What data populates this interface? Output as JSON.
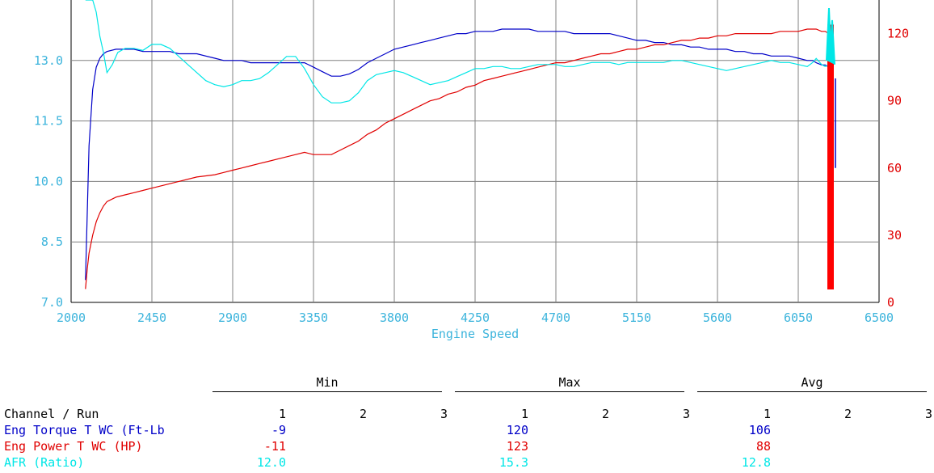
{
  "chart_data": {
    "type": "line",
    "xlabel": "Engine Speed",
    "xlim": [
      2000,
      6500
    ],
    "x_ticks": [
      "2000",
      "2450",
      "2900",
      "3350",
      "3800",
      "4250",
      "4700",
      "5150",
      "5600",
      "6050",
      "6500"
    ],
    "ylim_left": [
      7.0,
      14.5
    ],
    "y_ticks_left": [
      "7.0",
      "8.5",
      "10.0",
      "11.5",
      "13.0"
    ],
    "ylim_right": [
      0,
      135
    ],
    "y_ticks_right": [
      "0",
      "30",
      "60",
      "90",
      "120"
    ],
    "grid": true,
    "series": [
      {
        "axis": "right",
        "color": "#0000c8",
        "x": [
          2080,
          2090,
          2100,
          2120,
          2140,
          2160,
          2180,
          2200,
          2250,
          2300,
          2350,
          2400,
          2450,
          2500,
          2550,
          2600,
          2700,
          2800,
          2850,
          2900,
          2950,
          3000,
          3050,
          3100,
          3150,
          3200,
          3250,
          3300,
          3350,
          3400,
          3450,
          3500,
          3550,
          3600,
          3650,
          3700,
          3750,
          3800,
          3850,
          3900,
          3950,
          4000,
          4050,
          4100,
          4150,
          4200,
          4250,
          4300,
          4350,
          4400,
          4450,
          4500,
          4550,
          4600,
          4650,
          4700,
          4750,
          4800,
          4850,
          4900,
          4950,
          5000,
          5050,
          5100,
          5150,
          5200,
          5250,
          5300,
          5350,
          5400,
          5450,
          5500,
          5550,
          5600,
          5650,
          5700,
          5750,
          5800,
          5850,
          5900,
          5950,
          6000,
          6050,
          6100,
          6130,
          6150,
          6180,
          6200,
          6220,
          6240
        ],
        "y": [
          10,
          40,
          70,
          95,
          105,
          109,
          111,
          112,
          113,
          113,
          113,
          112,
          112,
          112,
          112,
          111,
          111,
          109,
          108,
          108,
          108,
          107,
          107,
          107,
          107,
          107,
          107,
          107,
          105,
          103,
          101,
          101,
          102,
          104,
          107,
          109,
          111,
          113,
          114,
          115,
          116,
          117,
          118,
          119,
          120,
          120,
          121,
          121,
          121,
          122,
          122,
          122,
          122,
          121,
          121,
          121,
          121,
          120,
          120,
          120,
          120,
          120,
          119,
          118,
          117,
          117,
          116,
          116,
          115,
          115,
          114,
          114,
          113,
          113,
          113,
          112,
          112,
          111,
          111,
          110,
          110,
          110,
          109,
          108,
          108,
          107,
          106,
          106,
          105,
          104
        ]
      },
      {
        "axis": "right",
        "color": "#e00000",
        "x": [
          2080,
          2090,
          2100,
          2120,
          2140,
          2160,
          2180,
          2200,
          2250,
          2300,
          2350,
          2400,
          2450,
          2500,
          2550,
          2600,
          2700,
          2800,
          2850,
          2900,
          2950,
          3000,
          3050,
          3100,
          3150,
          3200,
          3250,
          3300,
          3350,
          3400,
          3450,
          3500,
          3550,
          3600,
          3650,
          3700,
          3750,
          3800,
          3850,
          3900,
          3950,
          4000,
          4050,
          4100,
          4150,
          4200,
          4250,
          4300,
          4350,
          4400,
          4450,
          4500,
          4550,
          4600,
          4650,
          4700,
          4750,
          4800,
          4850,
          4900,
          4950,
          5000,
          5050,
          5100,
          5150,
          5200,
          5250,
          5300,
          5350,
          5400,
          5450,
          5500,
          5550,
          5600,
          5650,
          5700,
          5750,
          5800,
          5850,
          5900,
          5950,
          6000,
          6050,
          6100,
          6130,
          6150,
          6180,
          6200,
          6220,
          6240
        ],
        "y": [
          6,
          15,
          22,
          30,
          36,
          40,
          43,
          45,
          47,
          48,
          49,
          50,
          51,
          52,
          53,
          54,
          56,
          57,
          58,
          59,
          60,
          61,
          62,
          63,
          64,
          65,
          66,
          67,
          66,
          66,
          66,
          68,
          70,
          72,
          75,
          77,
          80,
          82,
          84,
          86,
          88,
          90,
          91,
          93,
          94,
          96,
          97,
          99,
          100,
          101,
          102,
          103,
          104,
          105,
          106,
          107,
          107,
          108,
          109,
          110,
          111,
          111,
          112,
          113,
          113,
          114,
          115,
          115,
          116,
          117,
          117,
          118,
          118,
          119,
          119,
          120,
          120,
          120,
          120,
          120,
          121,
          121,
          121,
          122,
          122,
          122,
          121,
          121,
          120,
          121
        ]
      },
      {
        "axis": "left",
        "color": "#00e6e6",
        "x": [
          2080,
          2090,
          2100,
          2120,
          2140,
          2160,
          2180,
          2200,
          2230,
          2260,
          2300,
          2350,
          2400,
          2450,
          2500,
          2550,
          2600,
          2650,
          2700,
          2750,
          2800,
          2850,
          2900,
          2950,
          3000,
          3050,
          3100,
          3150,
          3200,
          3250,
          3300,
          3350,
          3400,
          3450,
          3500,
          3550,
          3600,
          3650,
          3700,
          3750,
          3800,
          3850,
          3900,
          3950,
          4000,
          4050,
          4100,
          4150,
          4200,
          4250,
          4300,
          4350,
          4400,
          4450,
          4500,
          4550,
          4600,
          4650,
          4700,
          4750,
          4800,
          4850,
          4900,
          4950,
          5000,
          5050,
          5100,
          5150,
          5200,
          5250,
          5300,
          5350,
          5400,
          5450,
          5500,
          5550,
          5600,
          5650,
          5700,
          5750,
          5800,
          5850,
          5900,
          5950,
          6000,
          6050,
          6100,
          6130,
          6150,
          6180,
          6200,
          6220,
          6240
        ],
        "y": [
          14.5,
          14.6,
          14.6,
          14.5,
          14.2,
          13.6,
          13.2,
          12.7,
          12.9,
          13.2,
          13.3,
          13.3,
          13.25,
          13.4,
          13.4,
          13.3,
          13.1,
          12.9,
          12.7,
          12.5,
          12.4,
          12.35,
          12.4,
          12.5,
          12.5,
          12.55,
          12.7,
          12.9,
          13.1,
          13.1,
          12.8,
          12.4,
          12.1,
          11.95,
          11.95,
          12.0,
          12.2,
          12.5,
          12.65,
          12.7,
          12.75,
          12.7,
          12.6,
          12.5,
          12.4,
          12.45,
          12.5,
          12.6,
          12.7,
          12.8,
          12.8,
          12.85,
          12.85,
          12.8,
          12.8,
          12.85,
          12.9,
          12.9,
          12.9,
          12.85,
          12.85,
          12.9,
          12.95,
          12.95,
          12.95,
          12.9,
          12.95,
          12.95,
          12.95,
          12.95,
          12.95,
          13.0,
          13.0,
          12.95,
          12.9,
          12.85,
          12.8,
          12.75,
          12.8,
          12.85,
          12.9,
          12.95,
          13.0,
          12.95,
          12.95,
          12.9,
          12.85,
          12.95,
          13.05,
          12.9,
          12.85,
          12.9,
          12.9
        ]
      }
    ]
  },
  "stats": {
    "group_headers": [
      "Min",
      "Max",
      "Avg"
    ],
    "channel_header": "Channel / Run",
    "run_labels": [
      "1",
      "2",
      "3"
    ],
    "rows": [
      {
        "name": "Eng Torque T WC (Ft-Lb",
        "min": "-9",
        "max": "120",
        "avg": "106",
        "color": "#0000c8"
      },
      {
        "name": "Eng Power T WC (HP)",
        "min": "-11",
        "max": "123",
        "avg": "88",
        "color": "#e00000"
      },
      {
        "name": "AFR (Ratio)",
        "min": "12.0",
        "max": "15.3",
        "avg": "12.8",
        "color": "#00e6e6"
      }
    ]
  },
  "colors": {
    "axis_text": "#3cb4dc",
    "right_axis_text": "#e00000",
    "grid": "#808080",
    "spike": "#ff0000"
  }
}
